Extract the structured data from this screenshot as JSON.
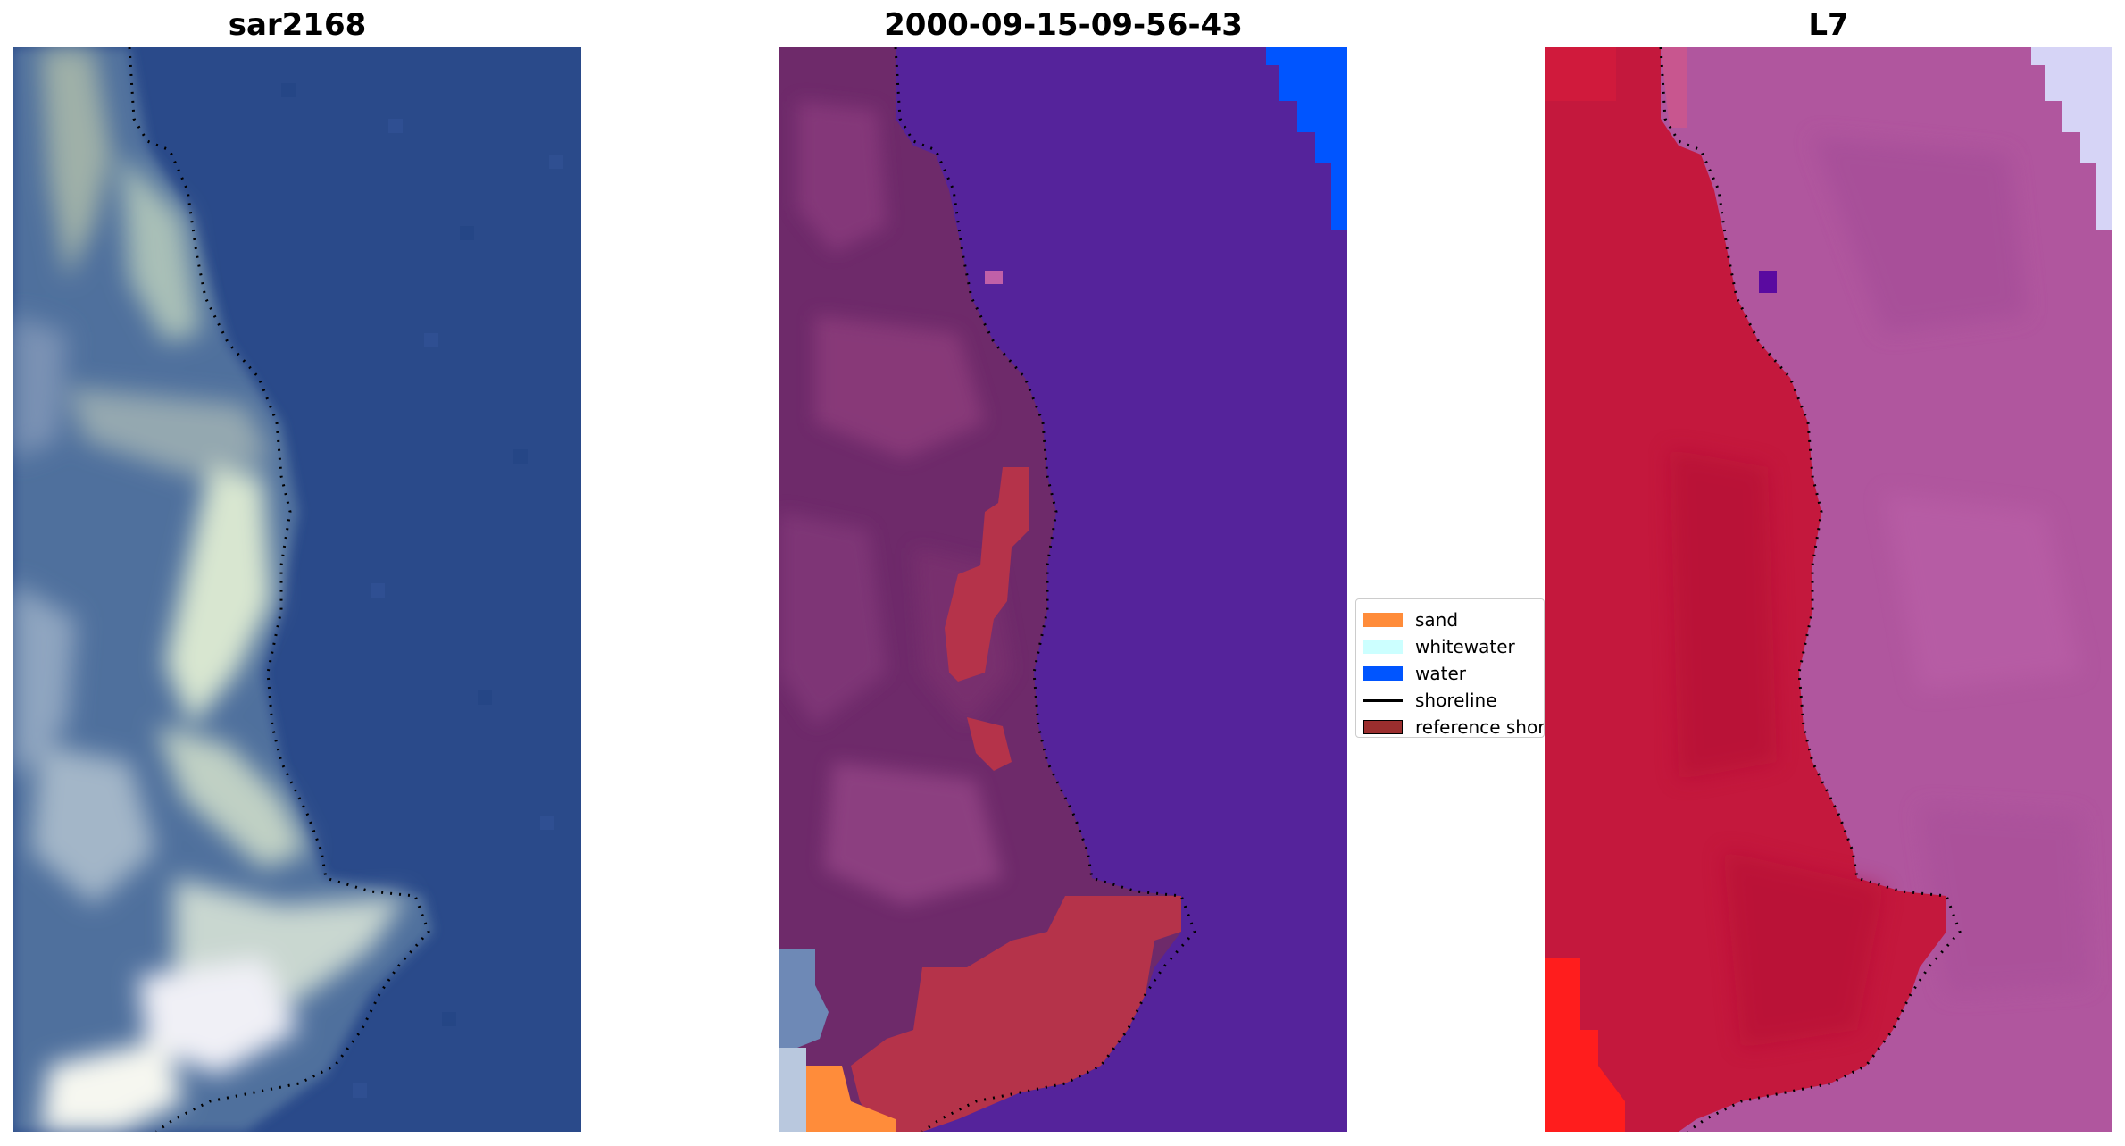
{
  "panels": [
    {
      "title": "sar2168"
    },
    {
      "title": "2000-09-15-09-56-43"
    },
    {
      "title": "L7"
    }
  ],
  "legend": {
    "items": [
      {
        "label": "sand",
        "color": "#ff8c3a"
      },
      {
        "label": "whitewater",
        "color": "#ccffff"
      },
      {
        "label": "water",
        "color": "#0055ff"
      },
      {
        "label": "shoreline",
        "color": "#000000"
      },
      {
        "label": "reference shoreline",
        "color": "#9b2e2e"
      }
    ]
  }
}
